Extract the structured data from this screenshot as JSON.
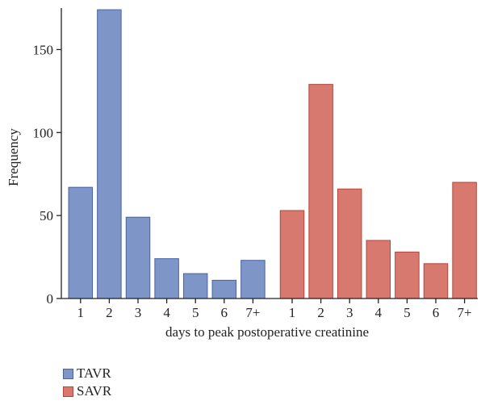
{
  "chart_data": {
    "type": "bar",
    "xlabel": "days to peak postoperative creatinine",
    "ylabel": "Frequency",
    "ylim": [
      0,
      175
    ],
    "yticks": [
      0,
      50,
      100,
      150
    ],
    "grid": false,
    "legend_position": "bottom-left",
    "categories": [
      "1",
      "2",
      "3",
      "4",
      "5",
      "6",
      "7+"
    ],
    "series": [
      {
        "name": "TAVR",
        "color": "#7e95c8",
        "edge": "#4a62a6",
        "values": [
          67,
          174,
          49,
          24,
          15,
          11,
          23
        ]
      },
      {
        "name": "SAVR",
        "color": "#d8796f",
        "edge": "#b5443c",
        "values": [
          53,
          129,
          66,
          35,
          28,
          21,
          70
        ]
      }
    ]
  }
}
